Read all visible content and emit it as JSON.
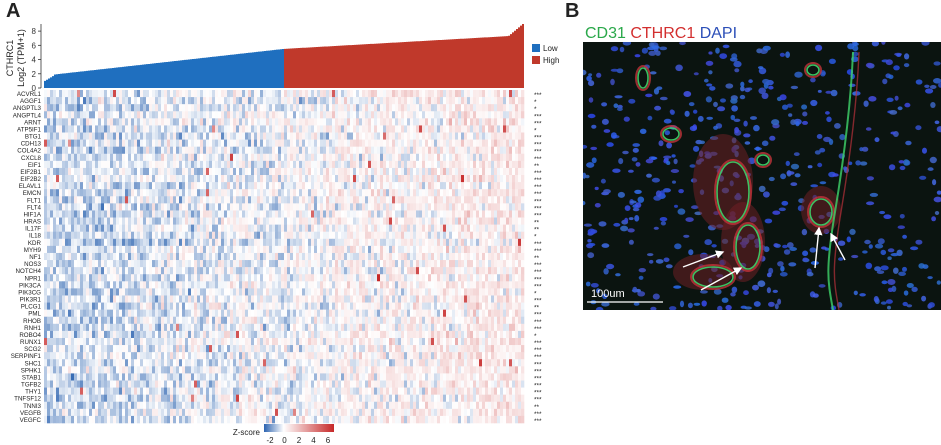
{
  "panel_a_letter": "A",
  "panel_b_letter": "B",
  "chart_data": [
    {
      "type": "bar",
      "panel": "A-top",
      "ylabel_line1": "CTHRC1",
      "ylabel_line2": "Log2 (TPM+1)",
      "yticks": [
        0,
        2,
        4,
        6,
        8
      ],
      "ylim": [
        0,
        9
      ],
      "distribution": "sorted ascending, ~470 samples",
      "low_range": [
        1.0,
        5.5
      ],
      "high_range": [
        5.5,
        9.0
      ],
      "series": [
        {
          "name": "Low",
          "color": "#1f6fbf"
        },
        {
          "name": "High",
          "color": "#c0392b"
        }
      ],
      "legend_position": "right"
    },
    {
      "type": "heatmap",
      "panel": "A-heatmap",
      "genes": [
        "ACVRL1",
        "AGGF1",
        "ANGPTL3",
        "ANGPTL4",
        "ARNT",
        "ATP5IF1",
        "BTG1",
        "CDH13",
        "COL4A2",
        "CXCL8",
        "EIF1",
        "EIF2B1",
        "EIF2B2",
        "ELAVL1",
        "EMCN",
        "FLT1",
        "FLT4",
        "HIF1A",
        "HRAS",
        "IL17F",
        "IL18",
        "KDR",
        "MYH9",
        "NF1",
        "NOS3",
        "NOTCH4",
        "NPR1",
        "PIK3CA",
        "PIK3CG",
        "PIK3R1",
        "PLCG1",
        "PML",
        "RHOB",
        "RNH1",
        "ROBO4",
        "RUNX1",
        "SCG2",
        "SERPINF1",
        "SHC1",
        "SPHK1",
        "STAB1",
        "TGFB2",
        "THY1",
        "TNFSF12",
        "TNNI3",
        "VEGFB",
        "VEGFC"
      ],
      "significance": [
        "***",
        "*",
        "*",
        "***",
        "***",
        "*",
        "***",
        "***",
        "***",
        "***",
        "**",
        "***",
        "***",
        "***",
        "***",
        "***",
        "***",
        "***",
        "**",
        "**",
        "*",
        "***",
        "***",
        "**",
        "***",
        "***",
        "***",
        "***",
        "*",
        "***",
        "**",
        "***",
        "***",
        "***",
        "*",
        "***",
        "***",
        "***",
        "***",
        "***",
        "***",
        "***",
        "***",
        "***",
        "**",
        "***",
        "***"
      ],
      "colorbar_label": "Z-score",
      "colorbar_ticks": [
        "-2",
        "0",
        "2",
        "4",
        "6"
      ],
      "colorscale": [
        "#2c63b0",
        "#ffffff",
        "#c62828"
      ]
    }
  ],
  "panel_b": {
    "stain_labels": [
      {
        "text": "CD31",
        "color": "#2aa84a"
      },
      {
        "text": "CTHRC1",
        "color": "#d32f2f"
      },
      {
        "text": "DAPI",
        "color": "#2c4fb8"
      }
    ],
    "scale_bar_label": "100um"
  }
}
